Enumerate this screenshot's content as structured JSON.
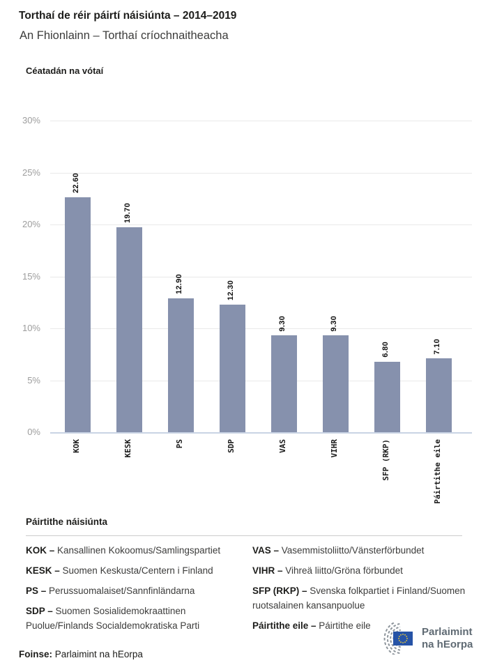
{
  "header": {
    "title": "Torthaí de réir páirtí náisiúnta – 2014–2019",
    "subtitle": "An Fhionlainn – Torthaí críochnaitheacha"
  },
  "chart_data": {
    "type": "bar",
    "title": "Céatadán na vótaí",
    "categories": [
      "KOK",
      "KESK",
      "PS",
      "SDP",
      "VAS",
      "VIHR",
      "SFP (RKP)",
      "Páirtithe eile"
    ],
    "values": [
      22.6,
      19.7,
      12.9,
      12.3,
      9.3,
      9.3,
      6.8,
      7.1
    ],
    "value_labels": [
      "22.60",
      "19.70",
      "12.90",
      "12.30",
      "9.30",
      "9.30",
      "6.80",
      "7.10"
    ],
    "y_ticks": [
      "30%",
      "25%",
      "20%",
      "15%",
      "10%",
      "5%",
      "0%"
    ],
    "ylim": [
      0,
      30
    ],
    "xlabel": "",
    "ylabel": "Céatadán na vótaí",
    "grid": true,
    "legend_position": "none",
    "bar_color": "#8691ad",
    "baseline_color": "#c9d3e4",
    "gridline_color": "#e9e9e9"
  },
  "legend": {
    "heading": "Páirtithe náisiúnta",
    "columns": [
      [
        {
          "abbr": "KOK –",
          "name": "Kansallinen Kokoomus/Samlingspartiet"
        },
        {
          "abbr": "KESK –",
          "name": "Suomen Keskusta/Centern i Finland"
        },
        {
          "abbr": "PS –",
          "name": "Perussuomalaiset/Sannfinländarna"
        },
        {
          "abbr": "SDP –",
          "name": "Suomen Sosialidemokraattinen Puolue/Finlands Socialdemokratiska Parti"
        }
      ],
      [
        {
          "abbr": "VAS –",
          "name": "Vasemmistoliitto/Vänsterförbundet"
        },
        {
          "abbr": "VIHR –",
          "name": "Vihreä liitto/Gröna förbundet"
        },
        {
          "abbr": "SFP (RKP) –",
          "name": "Svenska folkpartiet i Finland/Suomen ruotsalainen kansanpuolue"
        },
        {
          "abbr": "Páirtithe eile –",
          "name": "Páirtithe eile"
        }
      ]
    ]
  },
  "footer": {
    "source_label": "Foinse:",
    "source_value": "Parlaimint na hEorpa",
    "logo_line1": "Parlaimint",
    "logo_line2": "na hEorpa",
    "logo_text_color": "#5f6a73",
    "flag_blue": "#2653a6",
    "star_yellow": "#f8d12e"
  }
}
